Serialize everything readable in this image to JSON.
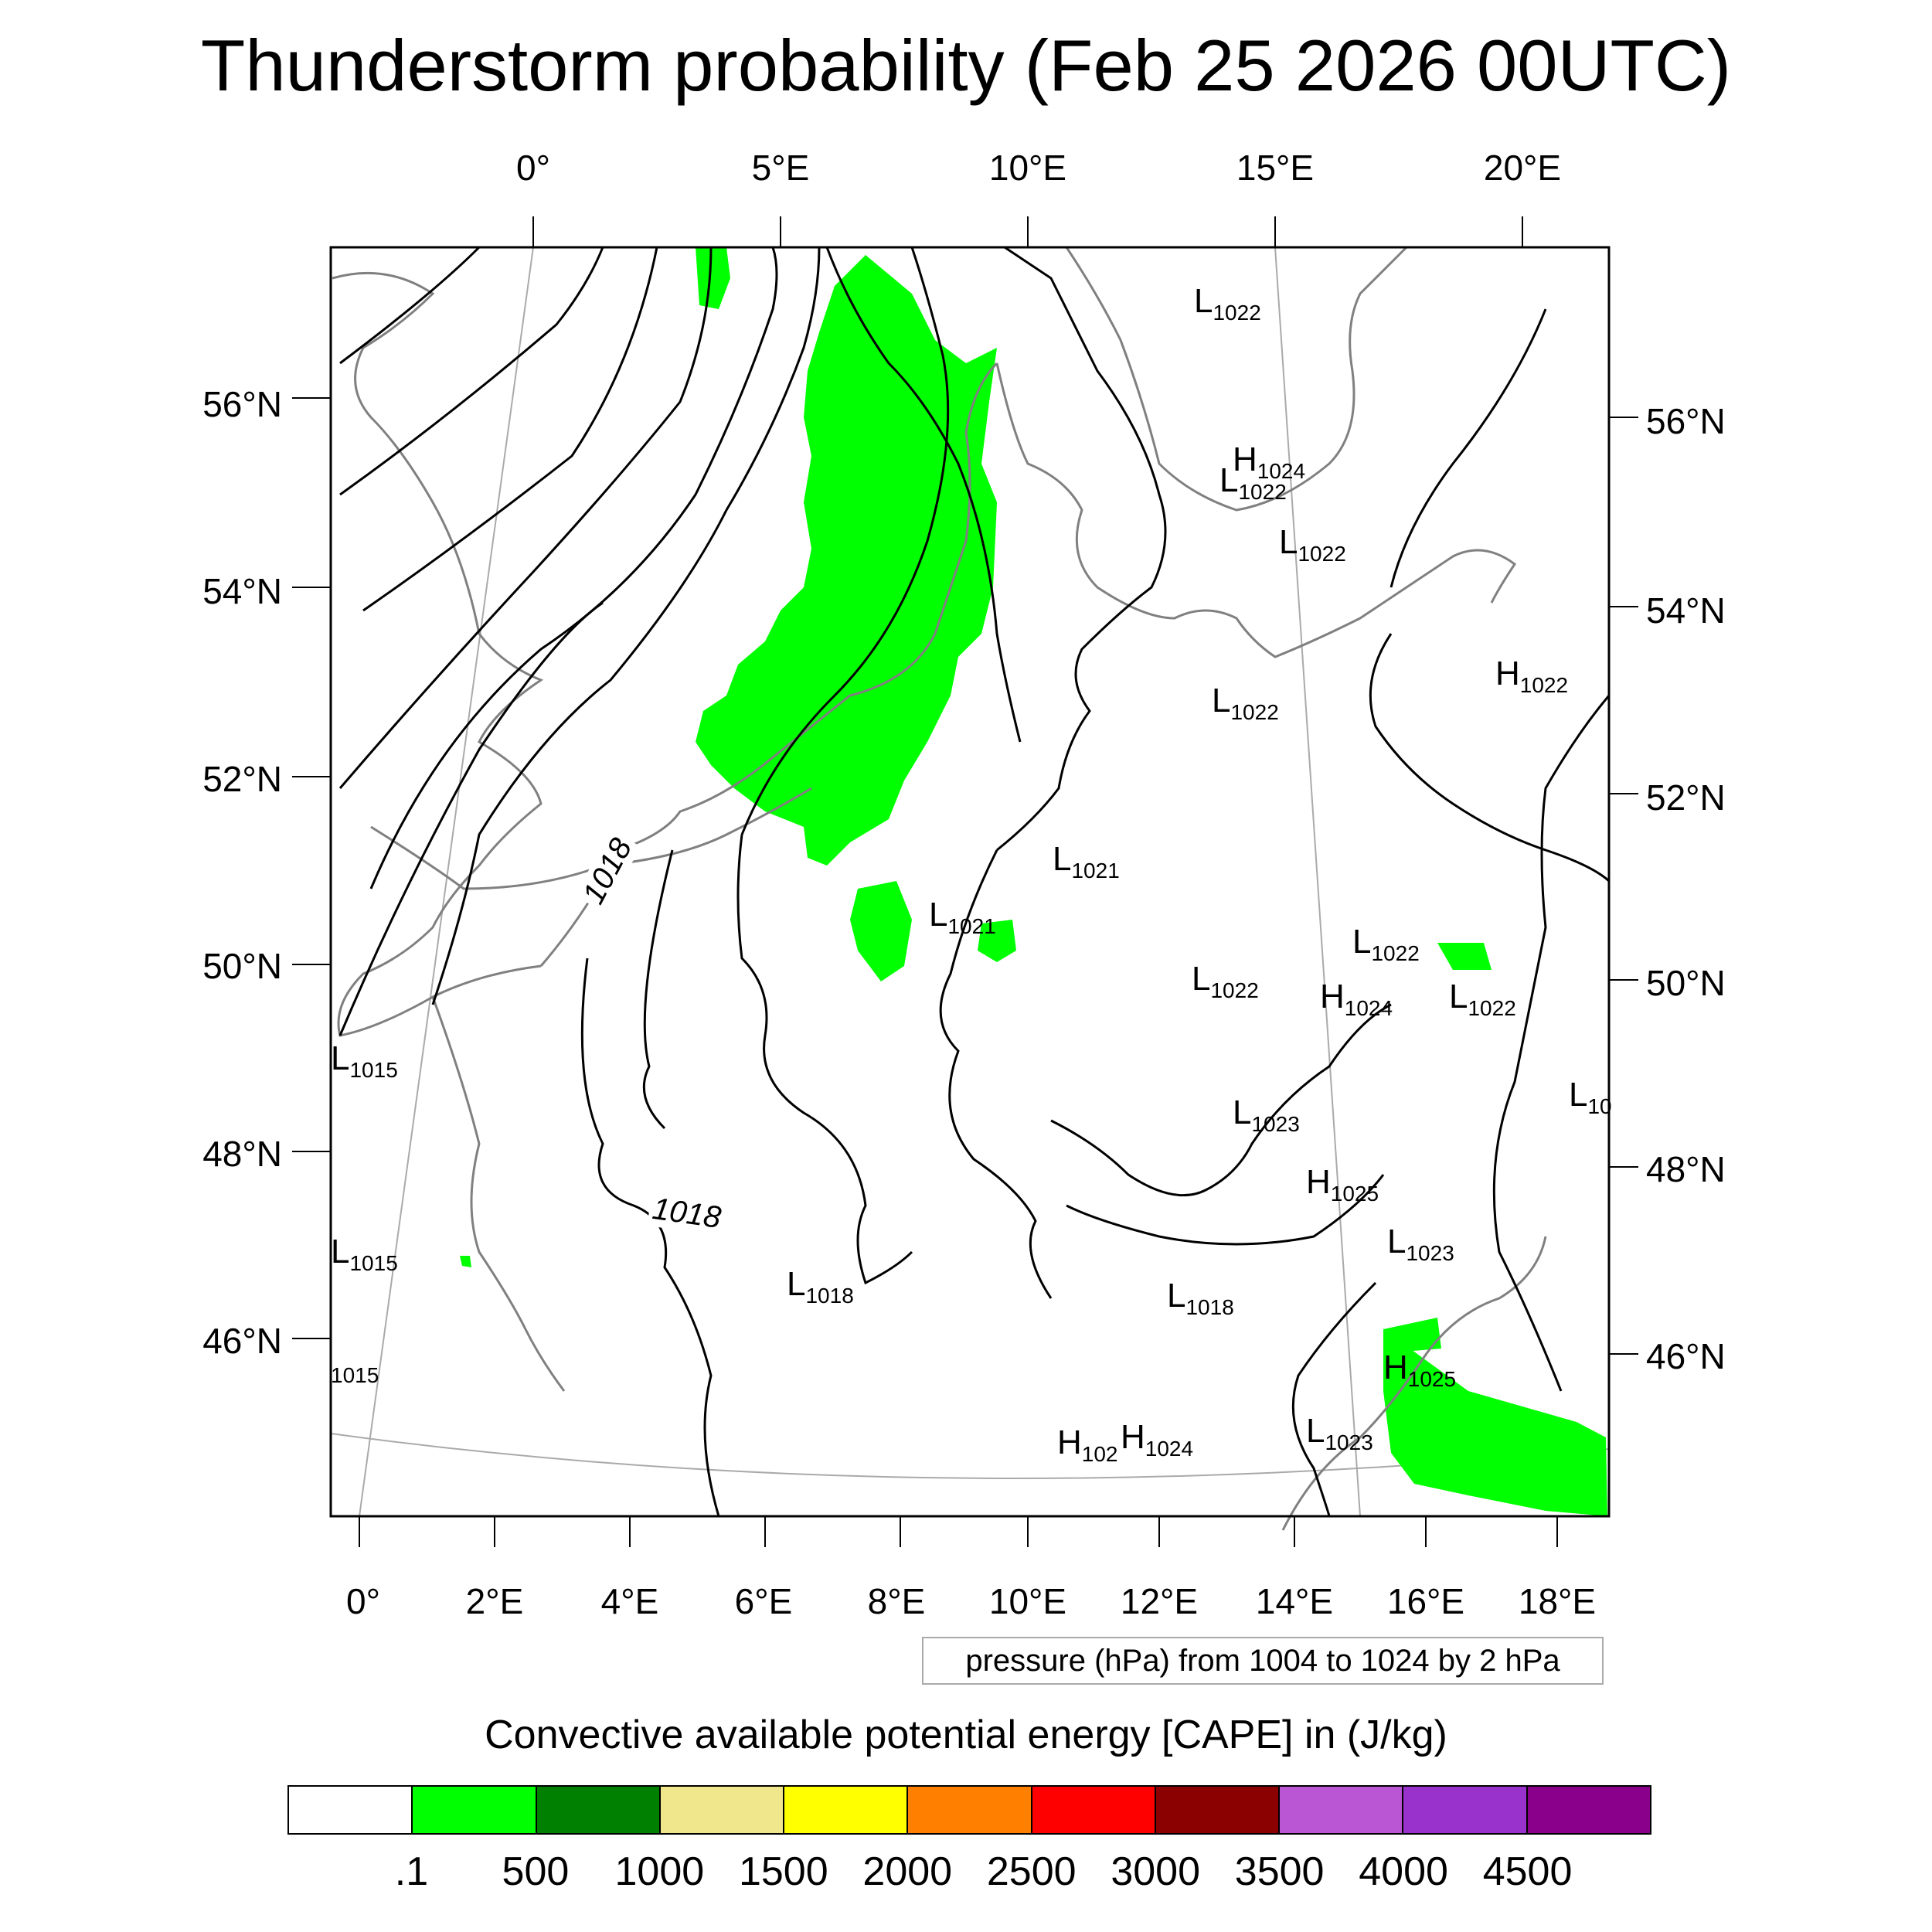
{
  "title": "Thunderstorm probability (Feb 25 2026 00UTC)",
  "axes": {
    "top_lon": [
      "0°",
      "5°E",
      "10°E",
      "15°E",
      "20°E"
    ],
    "bottom_lon": [
      "0°",
      "2°E",
      "4°E",
      "6°E",
      "8°E",
      "10°E",
      "12°E",
      "14°E",
      "16°E",
      "18°E"
    ],
    "left_lat": [
      "56°N",
      "54°N",
      "52°N",
      "50°N",
      "48°N",
      "46°N"
    ],
    "right_lat": [
      "56°N",
      "54°N",
      "52°N",
      "50°N",
      "48°N",
      "46°N"
    ]
  },
  "pressure_note": "pressure (hPa) from 1004 to 1024 by 2 hPa",
  "contour_labels": [
    "1018",
    "1018"
  ],
  "pressure_systems": [
    {
      "type": "L",
      "value": "1022"
    },
    {
      "type": "H",
      "value": "1024"
    },
    {
      "type": "L",
      "value": "1022"
    },
    {
      "type": "L",
      "value": "1022"
    },
    {
      "type": "H",
      "value": "1022"
    },
    {
      "type": "L",
      "value": "1022"
    },
    {
      "type": "L",
      "value": "1021"
    },
    {
      "type": "L",
      "value": "1021"
    },
    {
      "type": "L",
      "value": "1022"
    },
    {
      "type": "L",
      "value": "1022"
    },
    {
      "type": "H",
      "value": "1024"
    },
    {
      "type": "L",
      "value": "1022"
    },
    {
      "type": "L",
      "value": "1015"
    },
    {
      "type": "L",
      "value": "10"
    },
    {
      "type": "L",
      "value": "1023"
    },
    {
      "type": "H",
      "value": "1025"
    },
    {
      "type": "L",
      "value": "1015"
    },
    {
      "type": "L",
      "value": "1023"
    },
    {
      "type": "L",
      "value": "1018"
    },
    {
      "type": "L",
      "value": "1018"
    },
    {
      "type": "",
      "value": "1015"
    },
    {
      "type": "H",
      "value": "1025"
    },
    {
      "type": "H",
      "value": "102"
    },
    {
      "type": "H",
      "value": "1024"
    },
    {
      "type": "L",
      "value": "1023"
    }
  ],
  "legend": {
    "title": "Convective available potential energy [CAPE] in (J/kg)",
    "colors": [
      "#ffffff",
      "#00ff00",
      "#008000",
      "#f0e68c",
      "#ffff00",
      "#ff8000",
      "#ff0000",
      "#8b0000",
      "#ba55d3",
      "#9932cc",
      "#8b008b"
    ],
    "labels": [
      ".1",
      "500",
      "1000",
      "1500",
      "2000",
      "2500",
      "3000",
      "3500",
      "4000",
      "4500"
    ]
  },
  "cape_fill_color": "#00ff00"
}
